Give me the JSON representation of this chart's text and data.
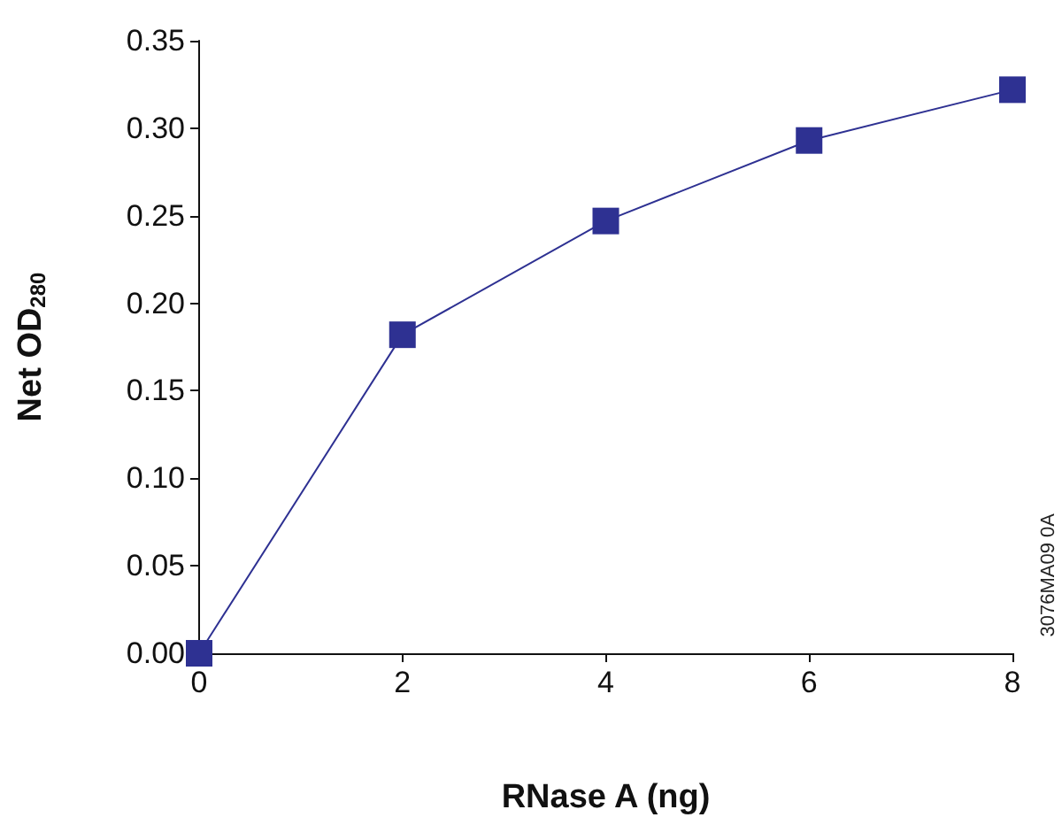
{
  "chart_data": {
    "type": "line",
    "xlabel": "RNase A (ng)",
    "ylabel": "Net OD$_{280}$",
    "x": [
      0,
      2,
      4,
      6,
      8
    ],
    "series": [
      {
        "color": "#2e3192",
        "values": [
          0,
          0.182,
          0.247,
          0.293,
          0.322
        ]
      }
    ],
    "xlim": [
      0,
      8
    ],
    "xticks": [
      0,
      2,
      4,
      6,
      8
    ],
    "ylim": [
      0,
      0.35
    ],
    "yticks": [
      {
        "value": 0,
        "label": "0.00"
      },
      {
        "value": 0.05,
        "label": "0.05"
      },
      {
        "value": 0.1,
        "label": "0.10"
      },
      {
        "value": 0.15,
        "label": "0.15"
      },
      {
        "value": 0.2,
        "label": "0.20"
      },
      {
        "value": 0.25,
        "label": "0.25"
      },
      {
        "value": 0.3,
        "label": "0.30"
      },
      {
        "value": 0.35,
        "label": "0.35"
      }
    ],
    "grid": false,
    "marker": "square",
    "line_style": "solid",
    "annotations": [
      "3076MA09 0A"
    ]
  }
}
